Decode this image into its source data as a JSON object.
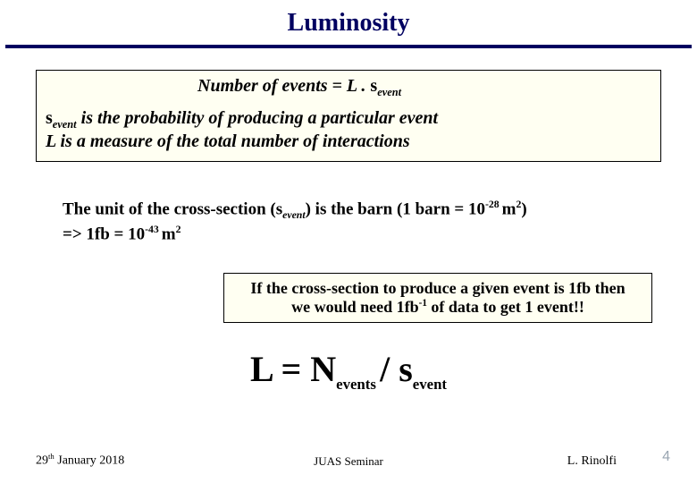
{
  "title": "Luminosity",
  "colors": {
    "title_color": "#000060",
    "rule_color": "#000060",
    "box_bg": "#fffff2",
    "box_border": "#000000",
    "slide_num_color": "#9aa6b2",
    "background": "#ffffff"
  },
  "box1": {
    "line1_prefix": "Number of events = L ",
    "line1_dot": ". ",
    "sigma": "s",
    "sigma_sub": "event",
    "line2a_pre": "s",
    "line2a_sub": "event",
    "line2a_rest": " is the probability of producing a particular event",
    "line2b": "L is a measure of the total number of interactions"
  },
  "plain": {
    "l1_a": "The unit of the cross-section (",
    "l1_sigma": "s",
    "l1_sub": "event",
    "l1_b": ") is the barn (1 barn = 10",
    "l1_sup1": "-28 ",
    "l1_c": "m",
    "l1_sup1b": "2",
    "l1_d": ")",
    "l2_a": "=> 1fb   = 10",
    "l2_sup": "-43 ",
    "l2_b": "m",
    "l2_sup2": "2"
  },
  "box2": {
    "l1": "If the cross-section to produce a given event is 1fb then",
    "l2_a": "we would need 1fb",
    "l2_sup": "-1",
    "l2_b": " of data to get 1 event!!"
  },
  "formula": {
    "a": "L = N",
    "sub1": "events ",
    "b": "/ ",
    "sigma": "s",
    "sub2": "event"
  },
  "footer": {
    "date_a": "29",
    "date_th": "th",
    "date_b": " January 2018",
    "center": "JUAS Seminar",
    "right": "L. Rinolfi",
    "num": "4"
  }
}
